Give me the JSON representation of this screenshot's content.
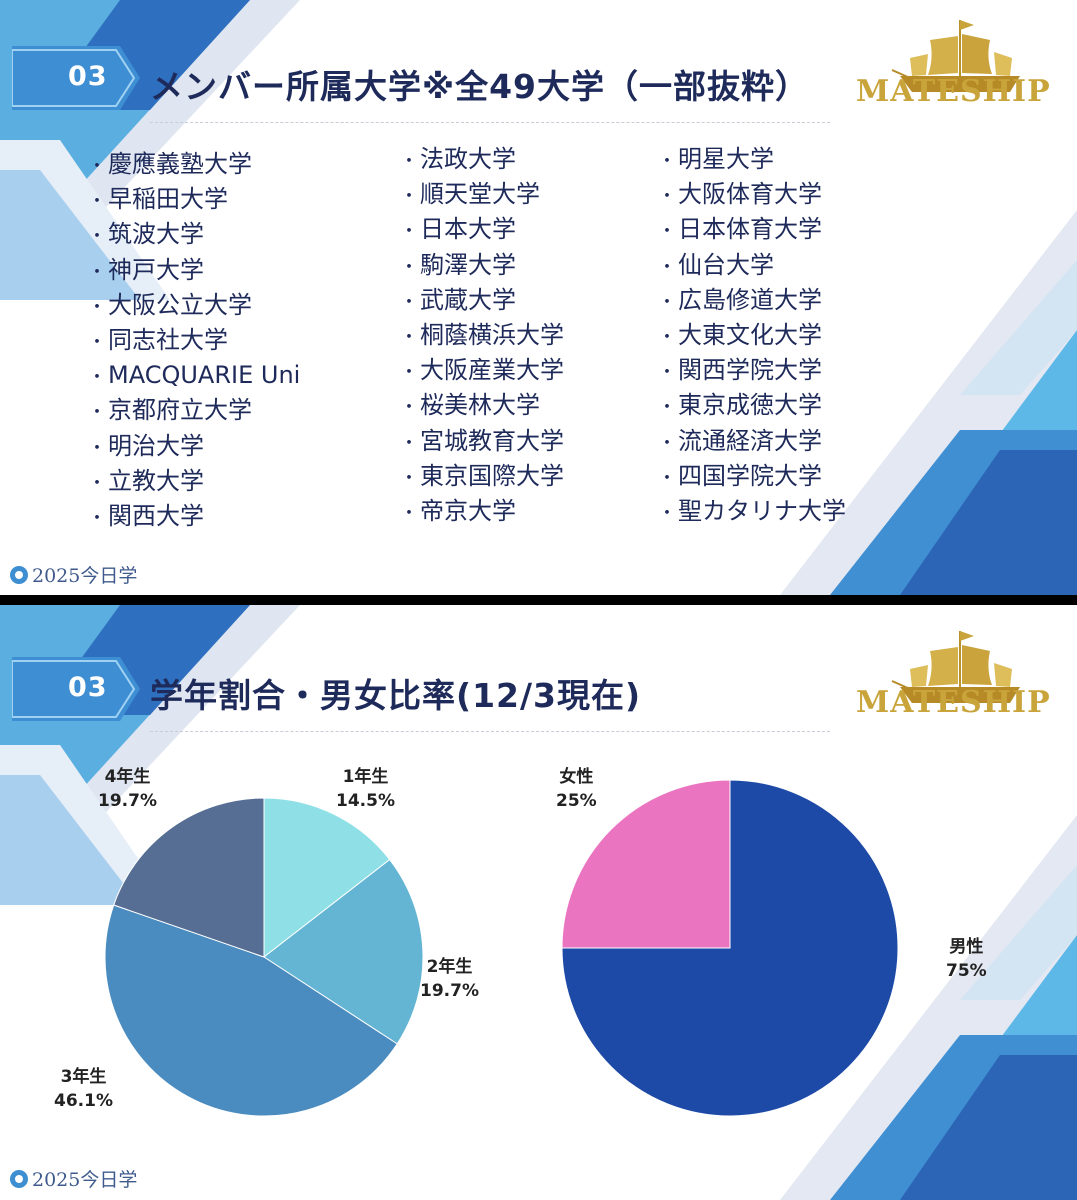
{
  "slide1": {
    "badge_number": "03",
    "title": "メンバー所属大学※全49大学（一部抜粋）",
    "logo_text": "MATESHIP",
    "bullet": "・",
    "columns": [
      [
        "慶應義塾大学",
        "早稲田大学",
        "筑波大学",
        "神戸大学",
        "大阪公立大学",
        "同志社大学",
        "MACQUARIE Uni",
        "京都府立大学",
        "明治大学",
        "立教大学",
        "関西大学"
      ],
      [
        "法政大学",
        "順天堂大学",
        "日本大学",
        "駒澤大学",
        "武蔵大学",
        "桐蔭横浜大学",
        "大阪産業大学",
        "桜美林大学",
        "宮城教育大学",
        "東京国際大学",
        "帝京大学"
      ],
      [
        "明星大学",
        "大阪体育大学",
        "日本体育大学",
        "仙台大学",
        "広島修道大学",
        "大東文化大学",
        "関西学院大学",
        "東京成徳大学",
        "流通経済大学",
        "四国学院大学",
        "聖カタリナ大学"
      ]
    ],
    "footer": "2025今日学"
  },
  "slide2": {
    "badge_number": "03",
    "title": "学年割合・男女比率(12/3現在)",
    "logo_text": "MATESHIP",
    "footer": "2025今日学"
  },
  "chart_data": [
    {
      "type": "pie",
      "title": "",
      "slices": [
        {
          "label": "1年生",
          "value": 14.5,
          "display": "14.5%",
          "color": "#8fe0e6"
        },
        {
          "label": "2年生",
          "value": 19.7,
          "display": "19.7%",
          "color": "#64b4d4"
        },
        {
          "label": "3年生",
          "value": 46.1,
          "display": "46.1%",
          "color": "#4a8cbf"
        },
        {
          "label": "4年生",
          "value": 19.7,
          "display": "19.7%",
          "color": "#566e94"
        }
      ]
    },
    {
      "type": "pie",
      "title": "",
      "slices": [
        {
          "label": "男性",
          "value": 75,
          "display": "75%",
          "color": "#1d4aa6"
        },
        {
          "label": "女性",
          "value": 25,
          "display": "25%",
          "color": "#eb74c0"
        }
      ]
    }
  ]
}
